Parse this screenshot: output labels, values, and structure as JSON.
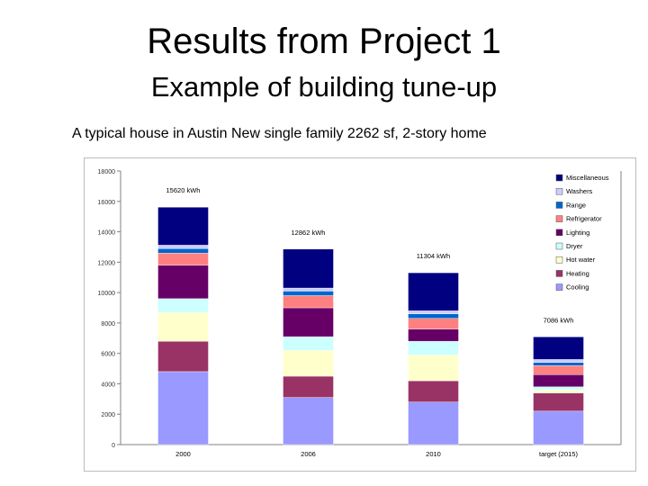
{
  "slide": {
    "title": "Results from Project 1",
    "subtitle": "Example of building tune-up",
    "caption": "A typical house in Austin New single family 2262 sf, 2-story  home"
  },
  "chart_data": {
    "type": "bar",
    "stacked": true,
    "title": "",
    "xlabel": "",
    "ylabel": "",
    "ylim": [
      0,
      18000
    ],
    "yticks": [
      0,
      2000,
      4000,
      6000,
      8000,
      10000,
      12000,
      14000,
      16000,
      18000
    ],
    "grid": false,
    "legend_position": "right",
    "categories": [
      "2000",
      "2006",
      "2010",
      "target (2015)"
    ],
    "totals_labels": [
      "15620 kWh",
      "12862 kWh",
      "11304 kWh",
      "7086 kWh"
    ],
    "totals": [
      15620,
      12862,
      11304,
      7086
    ],
    "series": [
      {
        "name": "Cooling",
        "color": "#9999ff",
        "values": [
          4800,
          3100,
          2800,
          2200
        ]
      },
      {
        "name": "Heating",
        "color": "#993366",
        "values": [
          2000,
          1400,
          1400,
          1200
        ]
      },
      {
        "name": "Hot water",
        "color": "#ffffcc",
        "values": [
          1900,
          1700,
          1700,
          200
        ]
      },
      {
        "name": "Dryer",
        "color": "#ccffff",
        "values": [
          900,
          900,
          900,
          200
        ]
      },
      {
        "name": "Lighting",
        "color": "#660066",
        "values": [
          2200,
          1900,
          800,
          800
        ]
      },
      {
        "name": "Refrigerator",
        "color": "#ff8080",
        "values": [
          800,
          800,
          700,
          600
        ]
      },
      {
        "name": "Range",
        "color": "#0066cc",
        "values": [
          300,
          300,
          300,
          200
        ]
      },
      {
        "name": "Washers",
        "color": "#ccccff",
        "values": [
          220,
          200,
          200,
          200
        ]
      },
      {
        "name": "Miscellaneous",
        "color": "#000080",
        "values": [
          2500,
          2562,
          2504,
          1486
        ]
      }
    ],
    "legend_order": [
      "Miscellaneous",
      "Washers",
      "Range",
      "Refrigerator",
      "Lighting",
      "Dryer",
      "Hot water",
      "Heating",
      "Cooling"
    ]
  }
}
